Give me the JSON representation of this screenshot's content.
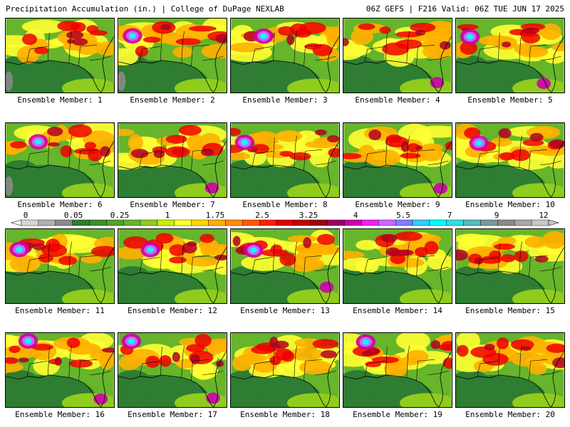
{
  "header": {
    "title": "Precipitation Accumulation (in.) | College of DuPage NEXLAB",
    "run_info": "06Z GEFS | F216 Valid: 06Z TUE JUN 17 2025"
  },
  "members": [
    {
      "label": "Ensemble Member: 1",
      "variant": 1
    },
    {
      "label": "Ensemble Member: 2",
      "variant": 2
    },
    {
      "label": "Ensemble Member: 3",
      "variant": 3
    },
    {
      "label": "Ensemble Member: 4",
      "variant": 4
    },
    {
      "label": "Ensemble Member: 5",
      "variant": 5
    },
    {
      "label": "Ensemble Member: 6",
      "variant": 6
    },
    {
      "label": "Ensemble Member: 7",
      "variant": 7
    },
    {
      "label": "Ensemble Member: 8",
      "variant": 8
    },
    {
      "label": "Ensemble Member: 9",
      "variant": 9
    },
    {
      "label": "Ensemble Member: 10",
      "variant": 10
    },
    {
      "label": "Ensemble Member: 11",
      "variant": 11
    },
    {
      "label": "Ensemble Member: 12",
      "variant": 12
    },
    {
      "label": "Ensemble Member: 13",
      "variant": 13
    },
    {
      "label": "Ensemble Member: 14",
      "variant": 14
    },
    {
      "label": "Ensemble Member: 15",
      "variant": 15
    },
    {
      "label": "Ensemble Member: 16",
      "variant": 16
    },
    {
      "label": "Ensemble Member: 17",
      "variant": 17
    },
    {
      "label": "Ensemble Member: 18",
      "variant": 18
    },
    {
      "label": "Ensemble Member: 19",
      "variant": 19
    },
    {
      "label": "Ensemble Member: 20",
      "variant": 20
    }
  ],
  "colorbar": {
    "labels": [
      "0",
      "0.05",
      "0.25",
      "1",
      "1.75",
      "2.5",
      "3.25",
      "4",
      "5.5",
      "7",
      "9",
      "12"
    ],
    "colors": [
      "#d6d6d6",
      "#b0b0b0",
      "#8a8a8a",
      "#2e7d32",
      "#3a8f2e",
      "#4ea32a",
      "#66b52a",
      "#8fcc1e",
      "#ccee00",
      "#ffff33",
      "#ffd700",
      "#ffb000",
      "#ff8c00",
      "#ff5a00",
      "#ff2000",
      "#e00000",
      "#c00000",
      "#a00010",
      "#990066",
      "#cc00aa",
      "#ee22ee",
      "#cc66ff",
      "#7f7fff",
      "#33ccff",
      "#00ffff",
      "#33dddd",
      "#55bbbb",
      "#7a9a9a",
      "#888888",
      "#a8a8a8",
      "#c8c8c8"
    ]
  },
  "map_colors": {
    "gulf": "#2e7d32",
    "land_base": "#66b52a",
    "light_green": "#8fcc1e",
    "yellow": "#ffff33",
    "orange": "#ffb000",
    "red": "#ee0000",
    "dark_red": "#b00020",
    "magenta": "#cc00aa",
    "violet": "#cc66ff",
    "cyan": "#00ffff",
    "gray": "#8a8a8a",
    "outline": "#000000"
  }
}
